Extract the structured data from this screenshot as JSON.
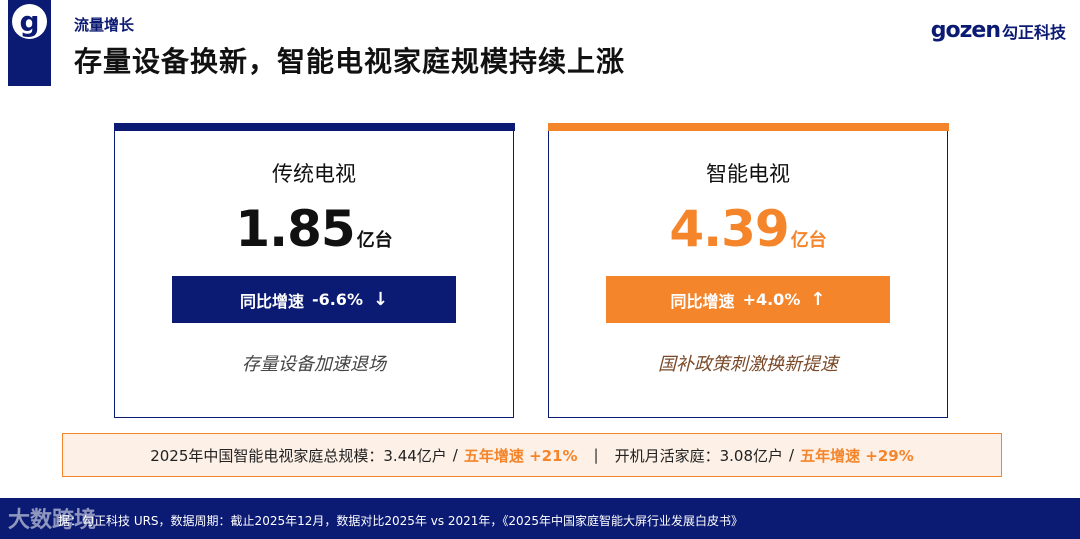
{
  "header": {
    "section_tag": "流量增长",
    "title": "存量设备换新，智能电视家庭规模持续上涨",
    "brand_mark": "gozen",
    "brand_name": "勾正科技"
  },
  "cards": [
    {
      "title": "传统电视",
      "value": "1.85",
      "unit": "亿台",
      "growth_label": "同比增速",
      "growth_value": "-6.6%",
      "growth_arrow": "↓",
      "note": "存量设备加速退场",
      "accent": "#0b1a72"
    },
    {
      "title": "智能电视",
      "value": "4.39",
      "unit": "亿台",
      "growth_label": "同比增速",
      "growth_value": "+4.0%",
      "growth_arrow": "↑",
      "note": "国补政策刺激换新提速",
      "accent": "#f5852b"
    }
  ],
  "summary": {
    "part1": "2025年中国智能电视家庭总规模：3.44亿户",
    "slash": "/",
    "hl1": "五年增速 +21%",
    "pipe": "|",
    "part2": "开机月活家庭：3.08亿户",
    "hl2": "五年增速 +29%"
  },
  "footer": {
    "watermark": "大数跨境",
    "source": "据：勾正科技 URS，数据周期：截止2025年12月，数据对比2025年 vs 2021年，《2025年中国家庭智能大屏行业发展白皮书》"
  },
  "colors": {
    "navy": "#0b1a72",
    "orange": "#f5852b"
  }
}
